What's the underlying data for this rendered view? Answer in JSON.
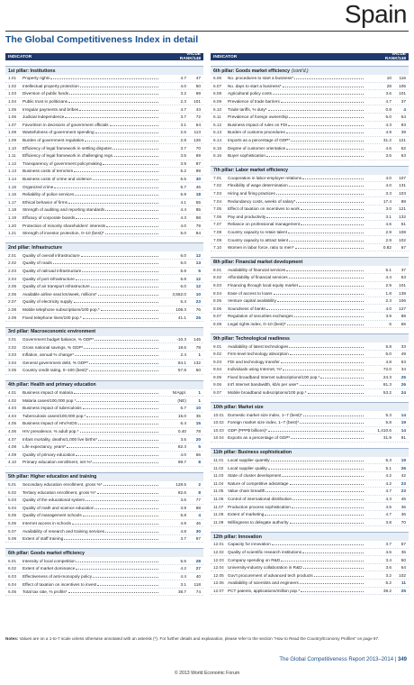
{
  "header": {
    "country": "Spain",
    "title": "The Global Competitiveness Index in detail"
  },
  "table_header": {
    "indicator": "INDICATOR",
    "value_rank": "VALUE RANK/148"
  },
  "left": [
    {
      "title": "1st pillar: Institutions",
      "rows": [
        [
          "1.01",
          "Property rights",
          "4.7",
          "47"
        ],
        [
          "1.02",
          "Intellectual property protection",
          "4.0",
          "50"
        ],
        [
          "1.03",
          "Diversion of public funds",
          "3.2",
          "69"
        ],
        [
          "1.04",
          "Public trust in politicians",
          "2.3",
          "101"
        ],
        [
          "1.05",
          "Irregular payments and bribes",
          "4.7",
          "43"
        ],
        [
          "1.06",
          "Judicial independence",
          "3.7",
          "72"
        ],
        [
          "1.07",
          "Favoritism in decisions of government officials",
          "3.1",
          "64"
        ],
        [
          "1.08",
          "Wastefulness of government spending",
          "2.6",
          "113"
        ],
        [
          "1.09",
          "Burden of government regulation",
          "2.8",
          "126"
        ],
        [
          "1.10",
          "Efficiency of legal framework in settling disputes",
          "3.7",
          "70"
        ],
        [
          "1.11",
          "Efficiency of legal framework in challenging regs.",
          "3.5",
          "69"
        ],
        [
          "1.12",
          "Transparency of government policymaking",
          "3.9",
          "87"
        ],
        [
          "1.13",
          "Business costs of terrorism",
          "5.2",
          "99"
        ],
        [
          "1.14",
          "Business costs of crime and violence",
          "5.5",
          "30"
        ],
        [
          "1.15",
          "Organized crime",
          "5.7",
          "46"
        ],
        [
          "1.16",
          "Reliability of police services",
          "5.9",
          "18"
        ],
        [
          "1.17",
          "Ethical behavior of firms",
          "4.1",
          "55"
        ],
        [
          "1.18",
          "Strength of auditing and reporting standards",
          "4.4",
          "85"
        ],
        [
          "1.19",
          "Efficacy of corporate boards",
          "4.3",
          "98"
        ],
        [
          "1.20",
          "Protection of minority shareholders' interests",
          "4.0",
          "79"
        ],
        [
          "1.21",
          "Strength of investor protection, 0–10 (best)*",
          "5.0",
          "84"
        ]
      ]
    },
    {
      "title": "2nd pillar: Infrastructure",
      "rows": [
        [
          "2.01",
          "Quality of overall infrastructure",
          "6.0",
          "12"
        ],
        [
          "2.02",
          "Quality of roads",
          "6.0",
          "13"
        ],
        [
          "2.03",
          "Quality of railroad infrastructure",
          "5.9",
          "5"
        ],
        [
          "2.04",
          "Quality of port infrastructure",
          "5.8",
          "12"
        ],
        [
          "2.05",
          "Quality of air transport infrastructure",
          "6.0",
          "12"
        ],
        [
          "2.06",
          "Available airline seat km/week, millions*",
          "3,552.0",
          "10"
        ],
        [
          "2.07",
          "Quality of electricity supply",
          "6.4",
          "23"
        ],
        [
          "2.08",
          "Mobile telephone subscriptions/100 pop.*",
          "108.3",
          "76"
        ],
        [
          "2.09",
          "Fixed telephone lines/100 pop.*",
          "41.1",
          "25"
        ]
      ]
    },
    {
      "title": "3rd pillar: Macroeconomic environment",
      "rows": [
        [
          "3.01",
          "Government budget balance, % GDP*",
          "-10.3",
          "145"
        ],
        [
          "3.02",
          "Gross national savings, % GDP*",
          "18.6",
          "78"
        ],
        [
          "3.03",
          "Inflation, annual % change*",
          "2.4",
          "1"
        ],
        [
          "3.04",
          "General government debt, % GDP*",
          "84.1",
          "132"
        ],
        [
          "3.05",
          "Country credit rating, 0–100 (best)*",
          "57.8",
          "50"
        ]
      ]
    },
    {
      "title": "4th pillar: Health and primary education",
      "rows": [
        [
          "4.01",
          "Business impact of malaria",
          "N/Appl.",
          "1"
        ],
        [
          "4.02",
          "Malaria cases/100,000 pop.*",
          "(NE)",
          "1"
        ],
        [
          "4.03",
          "Business impact of tuberculosis",
          "6.7",
          "10"
        ],
        [
          "4.04",
          "Tuberculosis cases/100,000 pop.*",
          "15.0",
          "35"
        ],
        [
          "4.05",
          "Business impact of HIV/AIDS",
          "6.4",
          "15"
        ],
        [
          "4.06",
          "HIV prevalence, % adult pop.*",
          "0.40",
          "78"
        ],
        [
          "4.07",
          "Infant mortality, deaths/1,000 live births*",
          "3.5",
          "20"
        ],
        [
          "4.08",
          "Life expectancy, years*",
          "82.3",
          "5"
        ],
        [
          "4.09",
          "Quality of primary education",
          "4.0",
          "66"
        ],
        [
          "4.10",
          "Primary education enrollment, net %*",
          "99.7",
          "8"
        ]
      ]
    },
    {
      "title": "5th pillar: Higher education and training",
      "rows": [
        [
          "5.01",
          "Secondary education enrollment, gross %*",
          "128.5",
          "2"
        ],
        [
          "5.02",
          "Tertiary education enrollment, gross %*",
          "82.6",
          "8"
        ],
        [
          "5.03",
          "Quality of the educational system",
          "3.6",
          "77"
        ],
        [
          "5.04",
          "Quality of math and science education",
          "3.9",
          "88"
        ],
        [
          "5.05",
          "Quality of management schools",
          "5.8",
          "4"
        ],
        [
          "5.06",
          "Internet access in schools",
          "4.9",
          "46"
        ],
        [
          "5.07",
          "Availability of research and training services",
          "4.8",
          "30"
        ],
        [
          "5.08",
          "Extent of staff training",
          "3.7",
          "97"
        ]
      ]
    },
    {
      "title": "6th pillar: Goods market efficiency",
      "rows": [
        [
          "6.01",
          "Intensity of local competition",
          "5.5",
          "28"
        ],
        [
          "6.02",
          "Extent of market dominance",
          "4.2",
          "27"
        ],
        [
          "6.03",
          "Effectiveness of anti-monopoly policy",
          "4.4",
          "40"
        ],
        [
          "6.04",
          "Effect of taxation on incentives to invest",
          "3.1",
          "118"
        ],
        [
          "6.05",
          "Total tax rate, % profits*",
          "38.7",
          "74"
        ]
      ]
    }
  ],
  "right": [
    {
      "title": "6th pillar: Goods market efficiency",
      "cont": "(cont'd.)",
      "rows": [
        [
          "6.06",
          "No. procedures to start a business*",
          "10",
          "116"
        ],
        [
          "6.07",
          "No. days to start a business*",
          "28",
          "105"
        ],
        [
          "6.08",
          "Agricultural policy costs",
          "3.6",
          "101"
        ],
        [
          "6.09",
          "Prevalence of trade barriers",
          "4.7",
          "37"
        ],
        [
          "6.10",
          "Trade tariffs, % duty*",
          "0.8",
          "4"
        ],
        [
          "6.11",
          "Prevalence of foreign ownership",
          "5.0",
          "54"
        ],
        [
          "6.12",
          "Business impact of rules on FDI",
          "4.3",
          "93"
        ],
        [
          "6.13",
          "Burden of customs procedures",
          "4.9",
          "39"
        ],
        [
          "6.14",
          "Imports as a percentage of GDP*",
          "31.2",
          "121"
        ],
        [
          "6.15",
          "Degree of customer orientation",
          "4.6",
          "62"
        ],
        [
          "6.16",
          "Buyer sophistication",
          "3.5",
          "63"
        ]
      ]
    },
    {
      "title": "7th pillar: Labor market efficiency",
      "rows": [
        [
          "7.01",
          "Cooperation in labor-employer relations",
          "4.0",
          "107"
        ],
        [
          "7.02",
          "Flexibility of wage determination",
          "4.0",
          "131"
        ],
        [
          "7.03",
          "Hiring and firing practices",
          "3.3",
          "103"
        ],
        [
          "7.04",
          "Redundancy costs, weeks of salary*",
          "17.4",
          "88"
        ],
        [
          "7.05",
          "Effect of taxation on incentives to work",
          "3.0",
          "121"
        ],
        [
          "7.06",
          "Pay and productivity",
          "3.1",
          "132"
        ],
        [
          "7.07",
          "Reliance on professional management",
          "4.6",
          "51"
        ],
        [
          "7.08",
          "Country capacity to retain talent",
          "2.9",
          "108"
        ],
        [
          "7.09",
          "Country capacity to attract talent",
          "2.9",
          "102"
        ],
        [
          "7.10",
          "Women in labor force, ratio to men*",
          "0.82",
          "67"
        ]
      ]
    },
    {
      "title": "8th pillar: Financial market development",
      "rows": [
        [
          "8.01",
          "Availability of financial services",
          "5.1",
          "37"
        ],
        [
          "8.02",
          "Affordability of financial services",
          "4.4",
          "53"
        ],
        [
          "8.03",
          "Financing through local equity market",
          "2.9",
          "101"
        ],
        [
          "8.04",
          "Ease of access to loans",
          "1.8",
          "138"
        ],
        [
          "8.05",
          "Venture capital availability",
          "2.3",
          "106"
        ],
        [
          "8.06",
          "Soundness of banks",
          "4.0",
          "127"
        ],
        [
          "8.07",
          "Regulation of securities exchanges",
          "3.9",
          "88"
        ],
        [
          "8.08",
          "Legal rights index, 0–10 (best)*",
          "6",
          "65"
        ]
      ]
    },
    {
      "title": "9th pillar: Technological readiness",
      "rows": [
        [
          "9.01",
          "Availability of latest technologies",
          "5.8",
          "33"
        ],
        [
          "9.02",
          "Firm-level technology absorption",
          "5.0",
          "49"
        ],
        [
          "9.03",
          "FDI and technology transfer",
          "4.8",
          "53"
        ],
        [
          "9.04",
          "Individuals using Internet, %*",
          "72.0",
          "34"
        ],
        [
          "9.05",
          "Fixed broadband Internet subscriptions/100 pop.*",
          "24.3",
          "25"
        ],
        [
          "9.06",
          "Int'l Internet bandwidth, kb/s per user*",
          "81.3",
          "26"
        ],
        [
          "9.07",
          "Mobile broadband subscriptions/100 pop.*",
          "53.2",
          "24"
        ]
      ]
    },
    {
      "title": "10th pillar: Market size",
      "rows": [
        [
          "10.01",
          "Domestic market size index, 1–7 (best)*",
          "5.3",
          "14"
        ],
        [
          "10.02",
          "Foreign market size index, 1–7 (best)*",
          "5.8",
          "19"
        ],
        [
          "10.03",
          "GDP (PPP$ billions)*",
          "1,410.6",
          "14"
        ],
        [
          "10.04",
          "Exports as a percentage of GDP*",
          "31.9",
          "91"
        ]
      ]
    },
    {
      "title": "11th pillar: Business sophistication",
      "rows": [
        [
          "11.01",
          "Local supplier quantity",
          "5.3",
          "19"
        ],
        [
          "11.02",
          "Local supplier quality",
          "5.1",
          "26"
        ],
        [
          "11.03",
          "State of cluster development",
          "4.2",
          "42"
        ],
        [
          "11.04",
          "Nature of competitive advantage",
          "4.2",
          "23"
        ],
        [
          "11.05",
          "Value chain breadth",
          "4.7",
          "23"
        ],
        [
          "11.06",
          "Control of international distribution",
          "4.3",
          "45"
        ],
        [
          "11.07",
          "Production process sophistication",
          "4.5",
          "36"
        ],
        [
          "11.08",
          "Extent of marketing",
          "4.7",
          "36"
        ],
        [
          "11.09",
          "Willingness to delegate authority",
          "3.8",
          "70"
        ]
      ]
    },
    {
      "title": "12th pillar: Innovation",
      "rows": [
        [
          "12.01",
          "Capacity for innovation",
          "3.7",
          "57"
        ],
        [
          "12.02",
          "Quality of scientific research institutions",
          "4.6",
          "36"
        ],
        [
          "12.03",
          "Company spending on R&D",
          "3.4",
          "50"
        ],
        [
          "12.04",
          "University-industry collaboration in R&D",
          "3.6",
          "64"
        ],
        [
          "12.05",
          "Gov't procurement of advanced tech products",
          "3.2",
          "102"
        ],
        [
          "12.06",
          "Availability of scientists and engineers",
          "5.2",
          "11"
        ],
        [
          "12.07",
          "PCT patents, applications/million pop.*",
          "39.2",
          "25"
        ]
      ]
    }
  ],
  "notes": {
    "label": "Notes:",
    "text": "Values are on a 1-to-7 scale unless otherwise annotated with an asterisk (*). For further details and explanation, please refer to the section \"How to Read the Country/Economy Profiles\" on page 97."
  },
  "footer": {
    "report": "The Global Competitiveness Report 2013–2014",
    "page": "349",
    "copyright": "© 2013 World Economic Forum"
  },
  "colors": {
    "header_bg": "#1f3a6b",
    "accent": "#1a4f8a",
    "pillar_bg": "#e6edf5"
  }
}
